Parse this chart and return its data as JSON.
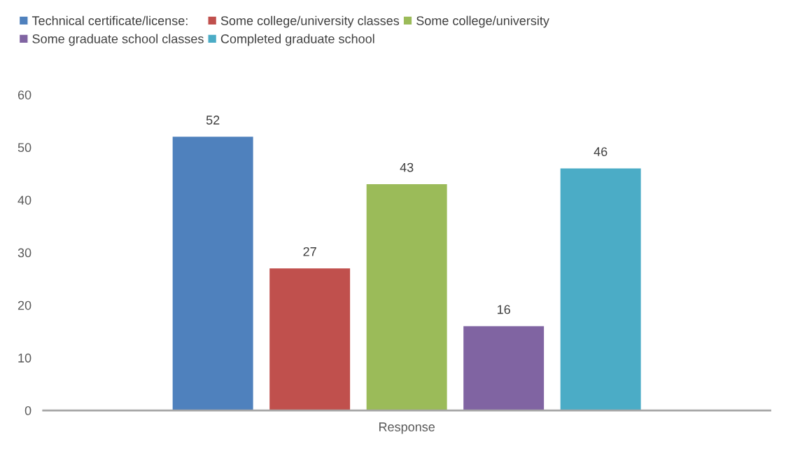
{
  "chart_data": {
    "type": "bar",
    "categories": [
      "Response"
    ],
    "series": [
      {
        "name": "Technical certificate/license:",
        "color": "#4f81bd",
        "values": [
          52
        ]
      },
      {
        "name": "Some college/university classes",
        "color": "#c0504d",
        "values": [
          27
        ]
      },
      {
        "name": "Some college/university",
        "color": "#9bbb59",
        "values": [
          43
        ]
      },
      {
        "name": "Some graduate school classes",
        "color": "#8064a2",
        "values": [
          16
        ]
      },
      {
        "name": "Completed graduate school",
        "color": "#4bacc6",
        "values": [
          46
        ]
      }
    ],
    "ylim": [
      0,
      60
    ],
    "yticks": [
      0,
      10,
      20,
      30,
      40,
      50,
      60
    ],
    "data_labels": true,
    "legend": "top",
    "grid": false
  }
}
